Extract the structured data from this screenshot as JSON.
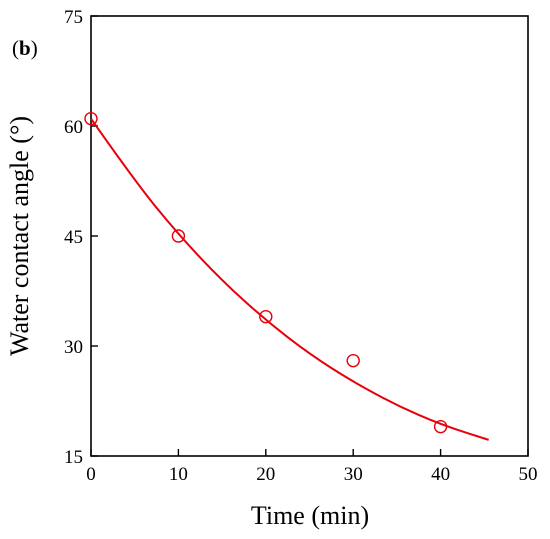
{
  "chart_data": {
    "type": "scatter",
    "panel_label": "b",
    "xlabel": "Time (min)",
    "ylabel": "Water contact angle (°)",
    "xlim": [
      0,
      50
    ],
    "ylim": [
      15,
      75
    ],
    "x_ticks": [
      0,
      10,
      20,
      30,
      40,
      50
    ],
    "y_ticks": [
      15,
      30,
      45,
      60,
      75
    ],
    "grid": false,
    "color": "#e8000b",
    "series": [
      {
        "marker": "open-circle",
        "x": [
          0,
          10,
          20,
          30,
          40
        ],
        "y": [
          61,
          45,
          34,
          28,
          19
        ]
      }
    ],
    "fit_curve": {
      "x": [
        0,
        5,
        10,
        15,
        20,
        25,
        30,
        35,
        40,
        45.5
      ],
      "y": [
        61,
        52.5,
        45.2,
        38.9,
        33.5,
        28.9,
        25.1,
        21.9,
        19.3,
        17.2
      ]
    }
  }
}
